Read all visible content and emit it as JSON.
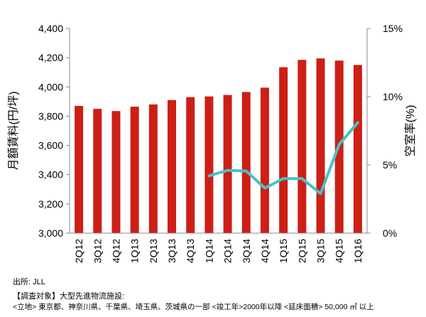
{
  "chart_data": {
    "type": "bar",
    "categories": [
      "2Q12",
      "3Q12",
      "4Q12",
      "1Q13",
      "2Q13",
      "3Q13",
      "4Q13",
      "1Q14",
      "2Q14",
      "3Q14",
      "4Q14",
      "1Q15",
      "2Q15",
      "3Q15",
      "4Q15",
      "1Q16"
    ],
    "series": [
      {
        "name": "月額賃料(円/坪)",
        "type": "bar",
        "axis": "left",
        "color": "#cc1f16",
        "values": [
          3870,
          3850,
          3835,
          3865,
          3880,
          3910,
          3930,
          3935,
          3945,
          3965,
          3995,
          4135,
          4185,
          4195,
          4180,
          4150
        ]
      },
      {
        "name": "空室率(%)",
        "type": "line",
        "axis": "right",
        "color": "#4bbfc8",
        "values": [
          null,
          null,
          null,
          null,
          null,
          null,
          null,
          4.2,
          4.6,
          4.55,
          3.3,
          4.0,
          4.0,
          2.9,
          6.5,
          8.1
        ]
      }
    ],
    "ylabel": "月額賃料(円/坪)",
    "y2label": "空室率(%)",
    "ylim": [
      3000,
      4400
    ],
    "y2lim": [
      0,
      15
    ],
    "yticks": [
      "3,000",
      "3,200",
      "3,400",
      "3,600",
      "3,800",
      "4,000",
      "4,200",
      "4,400"
    ],
    "y2ticks": [
      "0%",
      "5%",
      "10%",
      "15%"
    ],
    "grid": false
  },
  "notes": {
    "source": "出所: JLL",
    "line1": "【調査対象】大型先進物流施設:",
    "line2": "<立地> 東京都、神奈川県、千葉県、埼玉県、茨城県の一部  <竣工年>2000年以降   <延床面積> 50,000 ㎡ 以上"
  }
}
